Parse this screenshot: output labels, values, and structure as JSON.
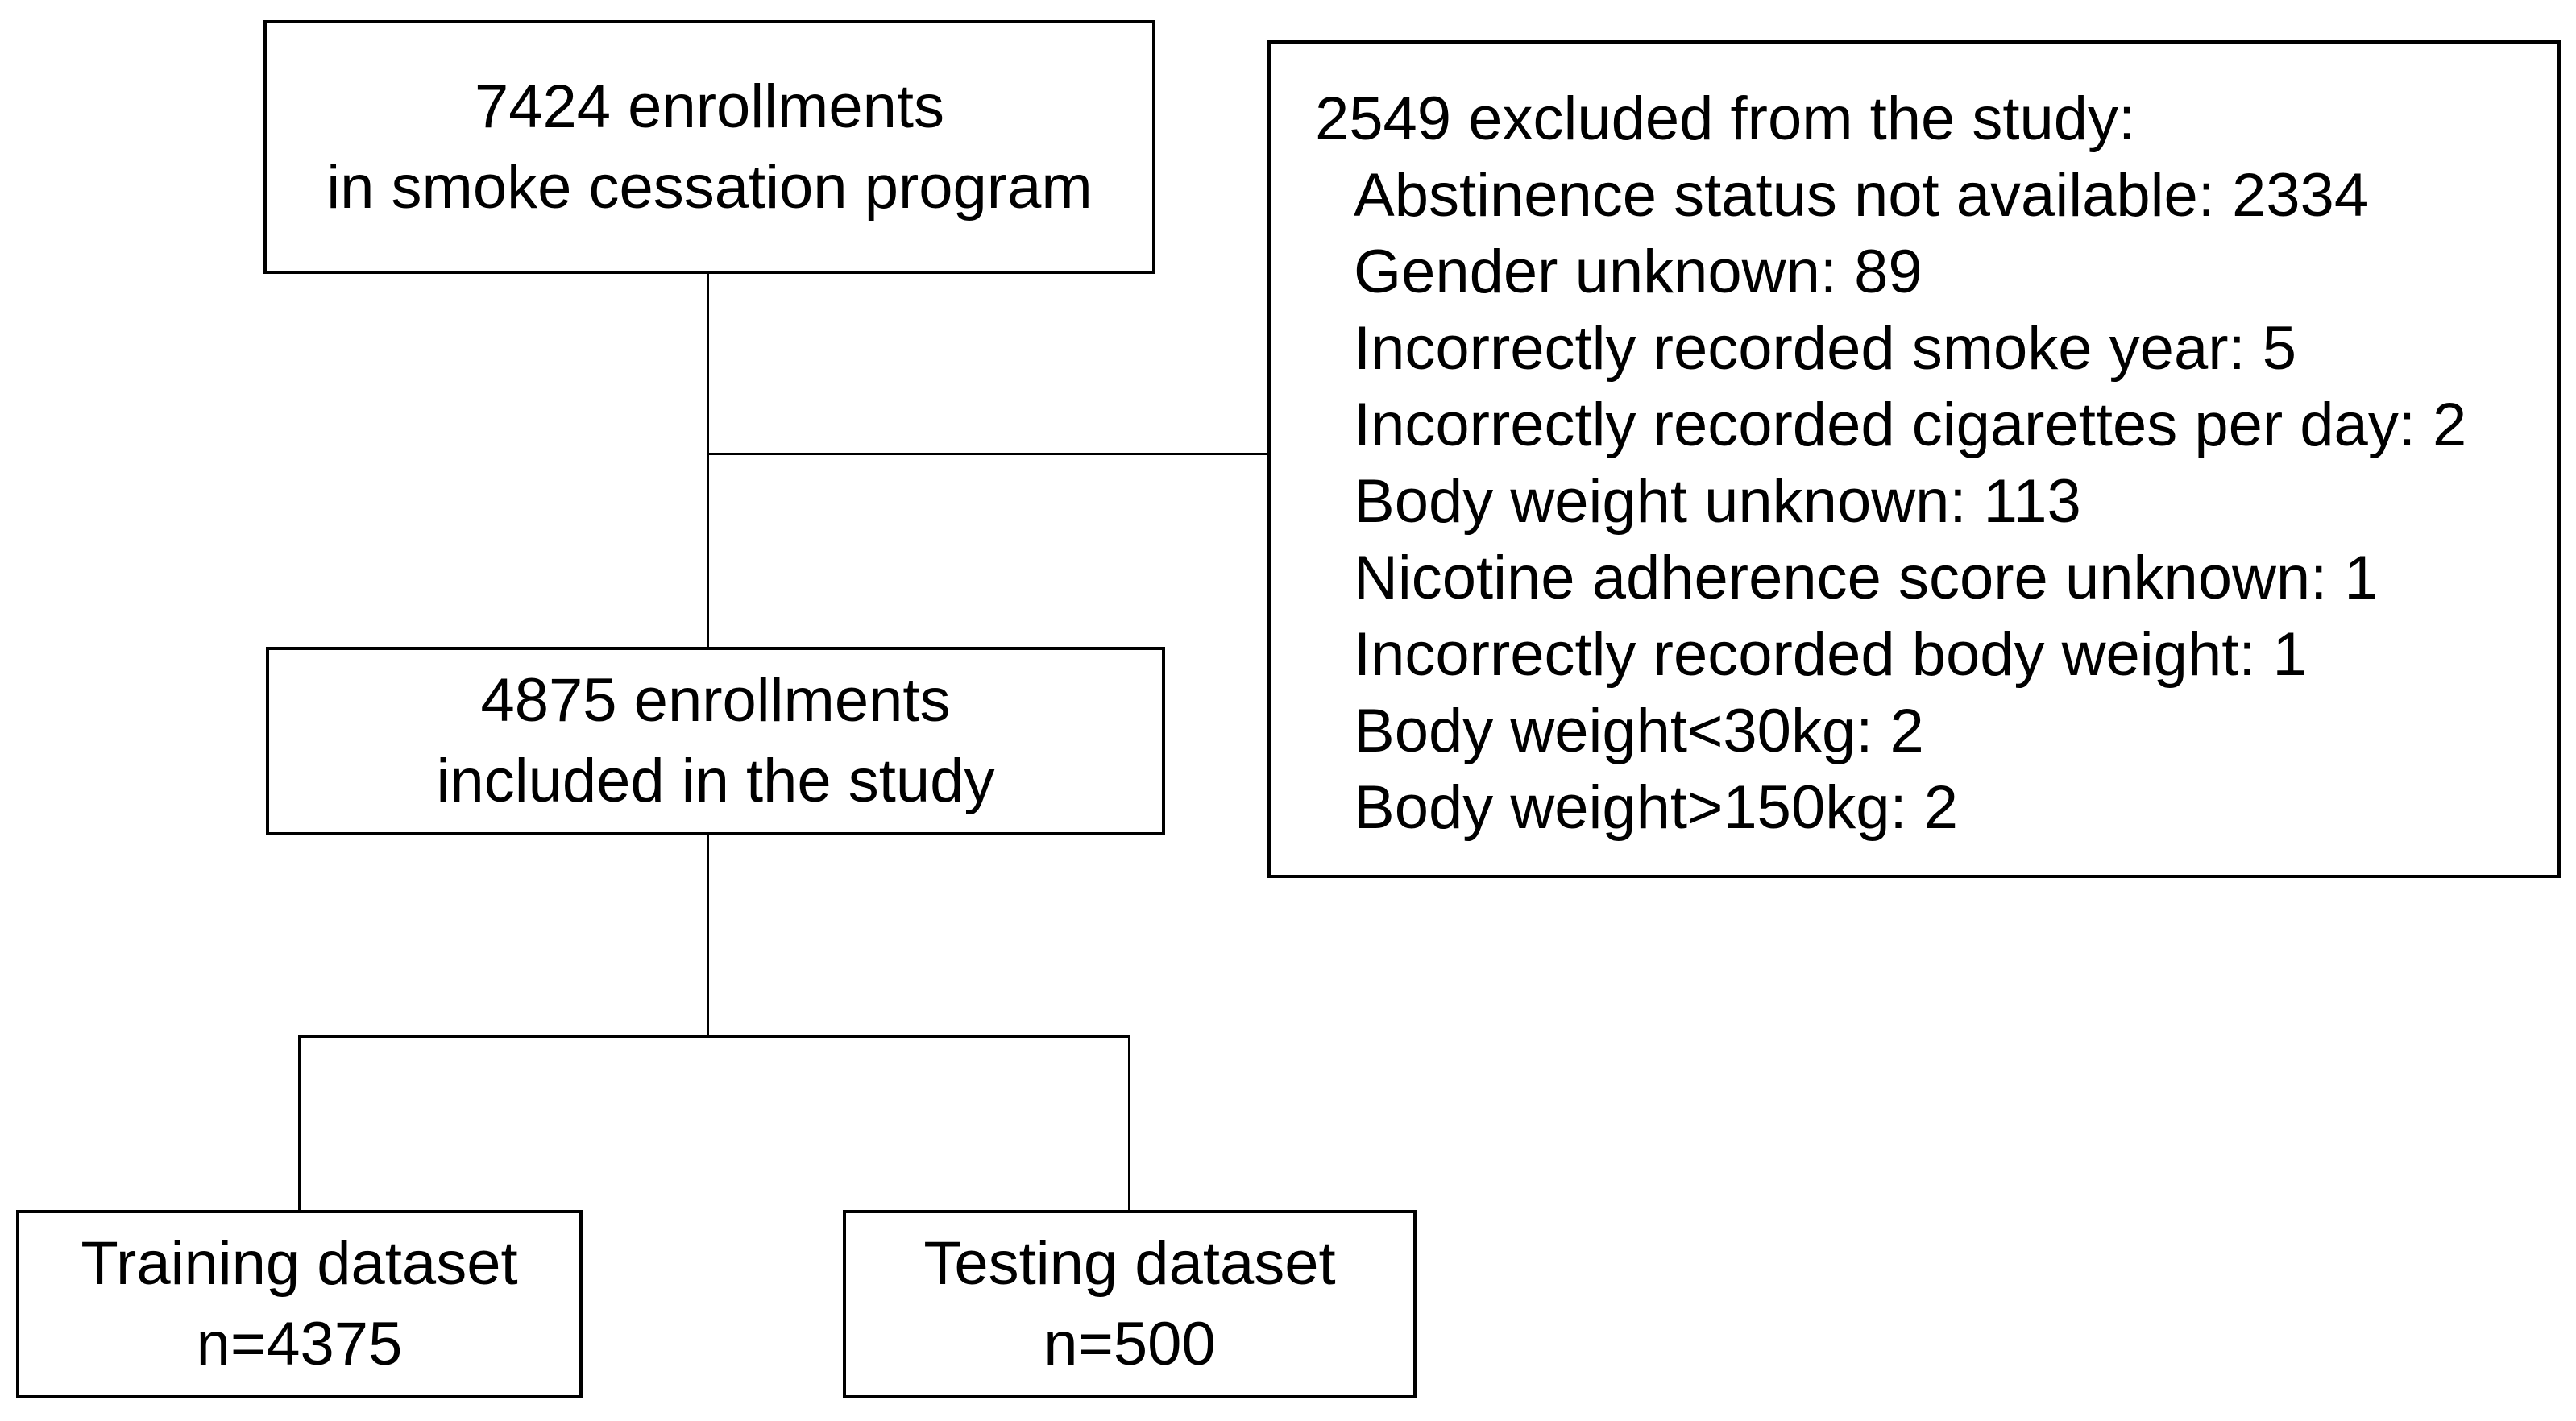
{
  "flowchart": {
    "boxes": {
      "enrollments": {
        "lines": [
          "7424 enrollments",
          "in smoke cessation program"
        ]
      },
      "excluded": {
        "header": "2549 excluded from the study:",
        "items": [
          "Abstinence status not available: 2334",
          "Gender unknown: 89",
          "Incorrectly recorded smoke year: 5",
          "Incorrectly recorded cigarettes per day: 2",
          "Body weight unknown: 113",
          "Nicotine adherence score unknown: 1",
          "Incorrectly recorded body weight: 1",
          "Body weight<30kg: 2",
          "Body weight>150kg: 2"
        ]
      },
      "included": {
        "lines": [
          "4875 enrollments",
          "included in the study"
        ]
      },
      "training": {
        "lines": [
          "Training dataset",
          "n=4375"
        ]
      },
      "testing": {
        "lines": [
          "Testing dataset",
          "n=500"
        ]
      }
    },
    "colors": {
      "background": "#ffffff",
      "box_border": "#000000",
      "connector": "#000000",
      "text": "#000000"
    }
  }
}
